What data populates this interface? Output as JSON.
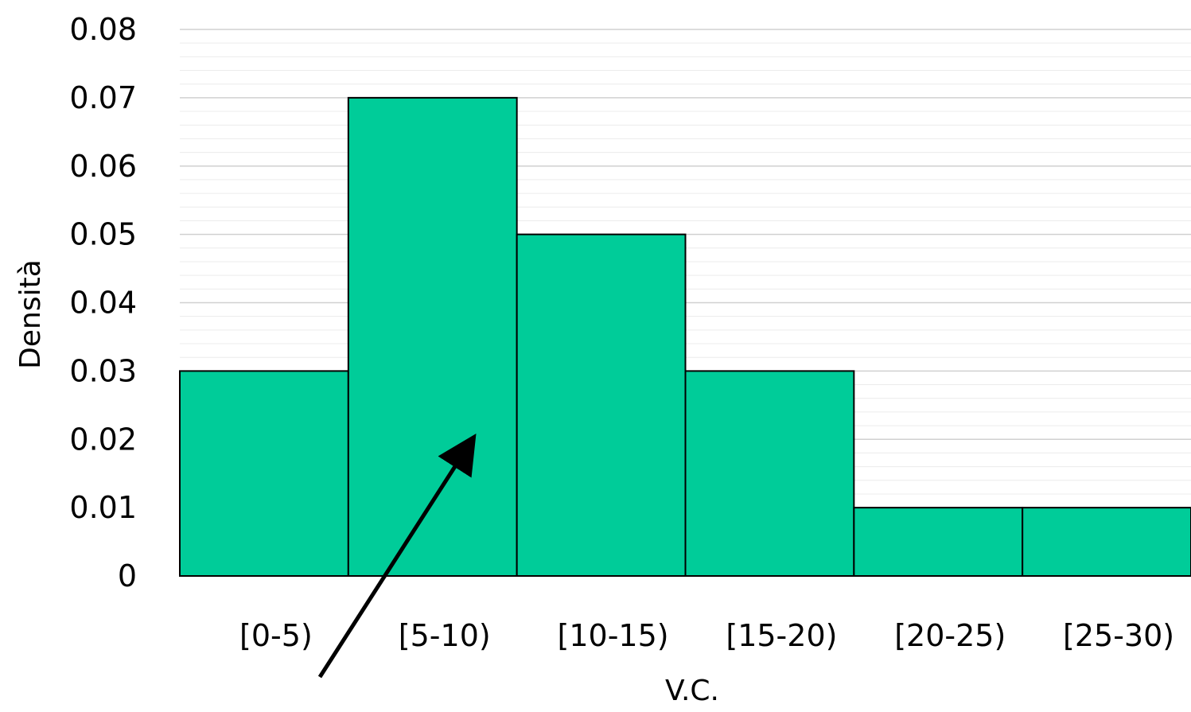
{
  "chart_data": {
    "type": "bar",
    "title": "",
    "xlabel": "V.C.",
    "ylabel": "Densità",
    "categories": [
      "[0-5)",
      "[5-10)",
      "[10-15)",
      "[15-20)",
      "[20-25)",
      "[25-30)"
    ],
    "values": [
      0.03,
      0.07,
      0.05,
      0.03,
      0.01,
      0.01
    ],
    "ylim": [
      0,
      0.08
    ],
    "yticks": [
      "0",
      "0.01",
      "0.02",
      "0.03",
      "0.04",
      "0.05",
      "0.06",
      "0.07",
      "0.08"
    ],
    "grid": true,
    "legend": "none",
    "bar_color": "#00CC99",
    "annotation": "arrow pointing to [5-10) bar"
  }
}
